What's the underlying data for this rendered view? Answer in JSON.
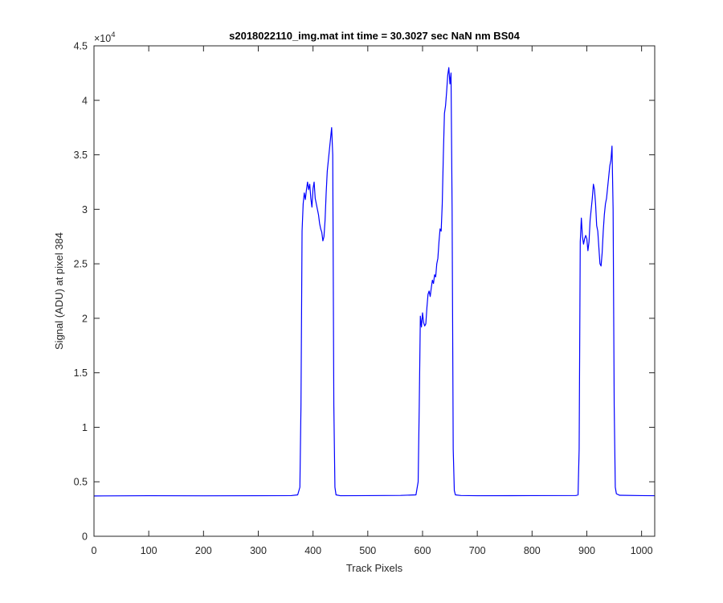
{
  "chart_data": {
    "type": "line",
    "title": "s2018022110_img.mat int time = 30.3027 sec  NaN nm BS04",
    "xlabel": "Track Pixels",
    "ylabel": "Signal (ADU) at pixel 384",
    "xlim": [
      0,
      1024
    ],
    "ylim": [
      0,
      45000
    ],
    "y_exponent_label": "×10",
    "y_exponent_power": "4",
    "xticks": [
      0,
      100,
      200,
      300,
      400,
      500,
      600,
      700,
      800,
      900,
      1000
    ],
    "xtick_labels": [
      "0",
      "100",
      "200",
      "300",
      "400",
      "500",
      "600",
      "700",
      "800",
      "900",
      "1000"
    ],
    "yticks": [
      0,
      5000,
      10000,
      15000,
      20000,
      25000,
      30000,
      35000,
      40000,
      45000
    ],
    "ytick_labels": [
      "0",
      "0.5",
      "1",
      "1.5",
      "2",
      "2.5",
      "3",
      "3.5",
      "4",
      "4.5"
    ],
    "grid": false,
    "series": [
      {
        "color": "#0000ff",
        "x": [
          0,
          100,
          200,
          300,
          360,
          372,
          376,
          378,
          380,
          382,
          384,
          386,
          388,
          390,
          392,
          394,
          396,
          398,
          400,
          402,
          404,
          406,
          408,
          410,
          412,
          414,
          416,
          418,
          420,
          422,
          424,
          426,
          428,
          430,
          432,
          434,
          436,
          438,
          440,
          442,
          450,
          500,
          560,
          588,
          592,
          594,
          596,
          598,
          600,
          602,
          604,
          606,
          608,
          610,
          612,
          614,
          616,
          618,
          620,
          622,
          624,
          626,
          628,
          630,
          632,
          634,
          636,
          638,
          640,
          642,
          644,
          646,
          648,
          650,
          652,
          654,
          656,
          658,
          660,
          670,
          700,
          800,
          880,
          884,
          886,
          888,
          890,
          892,
          894,
          896,
          898,
          900,
          902,
          904,
          906,
          908,
          910,
          912,
          914,
          916,
          918,
          920,
          922,
          924,
          926,
          928,
          930,
          932,
          934,
          936,
          938,
          940,
          942,
          944,
          946,
          948,
          950,
          952,
          954,
          960,
          1000,
          1024
        ],
        "y": [
          3700,
          3720,
          3710,
          3720,
          3730,
          3800,
          4500,
          12000,
          28000,
          30500,
          31500,
          30900,
          31800,
          32500,
          31800,
          32300,
          31000,
          30200,
          31900,
          32500,
          31000,
          30500,
          30000,
          29500,
          28700,
          28200,
          27900,
          27100,
          27500,
          29000,
          31500,
          33500,
          34500,
          35500,
          36500,
          37500,
          35000,
          12000,
          4500,
          3800,
          3720,
          3730,
          3750,
          3800,
          5000,
          12000,
          20200,
          19200,
          20500,
          19600,
          19300,
          19500,
          21000,
          22200,
          22500,
          22000,
          22800,
          23500,
          23200,
          24000,
          23800,
          25000,
          25500,
          27000,
          28200,
          28000,
          30500,
          35000,
          38800,
          39500,
          40800,
          42300,
          43000,
          41500,
          42500,
          30000,
          8000,
          4200,
          3800,
          3740,
          3720,
          3730,
          3740,
          3800,
          8000,
          27000,
          29200,
          27500,
          26800,
          27300,
          27600,
          27300,
          26200,
          27000,
          29000,
          30000,
          31000,
          32300,
          31800,
          30500,
          28500,
          28000,
          26500,
          25000,
          24800,
          26000,
          28000,
          29500,
          30500,
          31000,
          32000,
          33000,
          34000,
          34500,
          35800,
          30000,
          12000,
          4500,
          3900,
          3760,
          3730,
          3720
        ]
      }
    ]
  }
}
